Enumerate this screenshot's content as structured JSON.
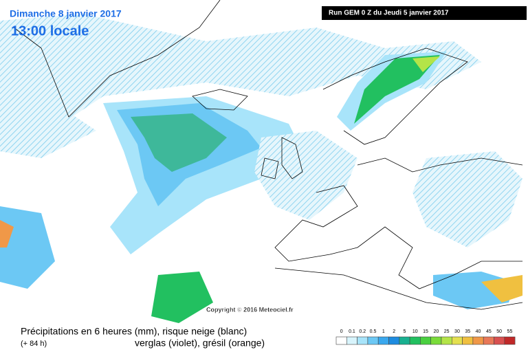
{
  "header": {
    "date": "Dimanche 8 janvier 2017",
    "time": "13:00 locale",
    "run": "Run GEM 0 Z du Jeudi 5 janvier 2017"
  },
  "copyright": "Copyright © 2016 Meteociel.fr",
  "caption": {
    "line1": "Précipitations en 6 heures (mm), risque neige (blanc)",
    "lead": "(+ 84 h)",
    "line2": "verglas (violet), grésil (orange)"
  },
  "legend": {
    "levels": [
      {
        "value": 0,
        "color": "#ffffff"
      },
      {
        "value": 0.1,
        "color": "#d8f4fc"
      },
      {
        "value": 0.2,
        "color": "#a8e4fa"
      },
      {
        "value": 0.5,
        "color": "#6cc8f4"
      },
      {
        "value": 1,
        "color": "#3aa8ee"
      },
      {
        "value": 2,
        "color": "#1e8ce0"
      },
      {
        "value": 5,
        "color": "#18b090"
      },
      {
        "value": 10,
        "color": "#22c060"
      },
      {
        "value": 15,
        "color": "#4ad040"
      },
      {
        "value": 20,
        "color": "#7adc3a"
      },
      {
        "value": 25,
        "color": "#b4e448"
      },
      {
        "value": 30,
        "color": "#e4e050"
      },
      {
        "value": 35,
        "color": "#f0c040"
      },
      {
        "value": 40,
        "color": "#f09848"
      },
      {
        "value": 45,
        "color": "#e87858"
      },
      {
        "value": 50,
        "color": "#d85050"
      },
      {
        "value": 55,
        "color": "#c02828"
      }
    ]
  }
}
